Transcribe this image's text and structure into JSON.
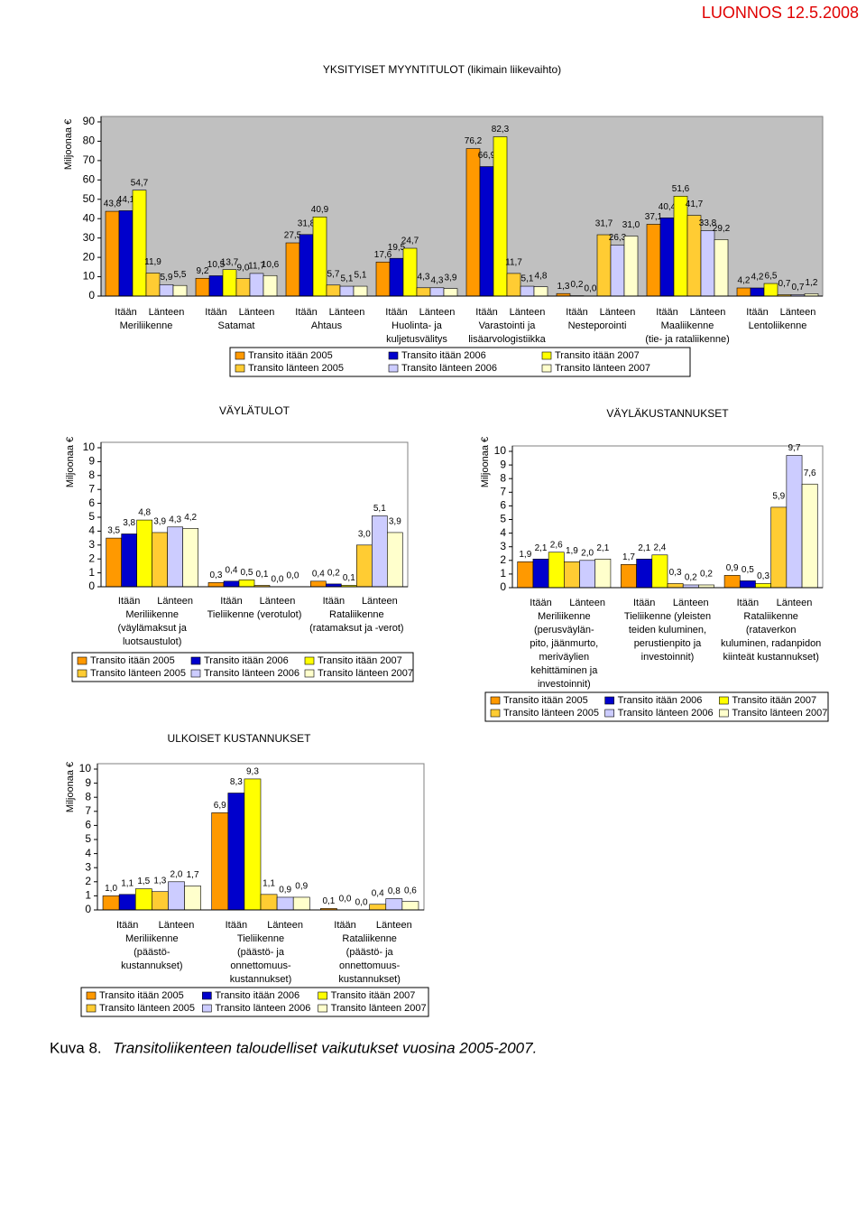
{
  "header": {
    "draft_label": "LUONNOS 12.5.2008"
  },
  "caption": {
    "label": "Kuva 8.",
    "text": "Transitoliikenteen taloudelliset vaikutukset vuosina 2005-2007."
  },
  "chart_data": [
    {
      "type": "bar",
      "title": "YKSITYISET MYYNTITULOT (likimain liikevaihto)",
      "y_label": "Miljoonaa €",
      "direction_labels": [
        "Itään",
        "Länteen"
      ],
      "categories": [
        [
          "Meriliikenne"
        ],
        [
          "Satamat"
        ],
        [
          "Ahtaus"
        ],
        [
          "Huolinta- ja",
          "kuljetusvälitys"
        ],
        [
          "Varastointi ja",
          "lisäarvologistiikka"
        ],
        [
          "Nesteporointi"
        ],
        [
          "Maaliikenne",
          "(tie- ja rataliikenne)"
        ],
        [
          "Lentoliikenne"
        ]
      ],
      "ylim": [
        0,
        90
      ],
      "yticks": [
        0,
        10,
        20,
        30,
        40,
        50,
        60,
        70,
        80,
        90
      ],
      "plot_background": "#C0C0C0",
      "series": [
        {
          "name": "Transito itään 2005",
          "color": "#FF9900",
          "values": [
            43.8,
            9.2,
            27.5,
            17.6,
            76.2,
            1.3,
            37.1,
            4.2
          ],
          "value_labels": [
            "43,8",
            "9,2",
            "27,5",
            "17,6",
            "76,2",
            "1,3",
            "37,1",
            "4,2"
          ]
        },
        {
          "name": "Transito itään 2006",
          "color": "#0000CC",
          "values": [
            44.1,
            10.5,
            31.8,
            19.5,
            66.9,
            0.2,
            40.4,
            4.2
          ],
          "value_labels": [
            "44,1",
            "10,5",
            "31,8",
            "19,5",
            "66,9",
            "0,2",
            "40,4",
            "4,2"
          ]
        },
        {
          "name": "Transito itään 2007",
          "color": "#FFFF00",
          "values": [
            54.7,
            13.7,
            40.9,
            24.7,
            82.3,
            0.0,
            51.6,
            6.5
          ],
          "value_labels": [
            "54,7",
            "13,7",
            "40,9",
            "24,7",
            "82,3",
            "0,0",
            "51,6",
            "6,5"
          ]
        },
        {
          "name": "Transito länteen 2005",
          "color": "#FFCC33",
          "values": [
            11.9,
            9.0,
            5.7,
            4.3,
            11.7,
            31.7,
            41.7,
            0.7
          ],
          "value_labels": [
            "11,9",
            "9,0",
            "5,7",
            "4,3",
            "11,7",
            "31,7",
            "41,7",
            "0,7"
          ]
        },
        {
          "name": "Transito länteen 2006",
          "color": "#CCCCFF",
          "values": [
            5.9,
            11.7,
            5.1,
            4.3,
            5.1,
            26.3,
            33.8,
            0.7
          ],
          "value_labels": [
            "5,9",
            "11,7",
            "5,1",
            "4,3",
            "5,1",
            "26,3",
            "33,8",
            "0,7"
          ]
        },
        {
          "name": "Transito länteen 2007",
          "color": "#FFFFCC",
          "values": [
            5.5,
            10.6,
            5.1,
            3.9,
            4.8,
            31.0,
            29.2,
            1.2
          ],
          "value_labels": [
            "5,5",
            "10,6",
            "5,1",
            "3,9",
            "4,8",
            "31,0",
            "29,2",
            "1,2"
          ]
        }
      ]
    },
    {
      "type": "bar",
      "title": "VÄYLÄTULOT",
      "y_label": "Miljoonaa €",
      "direction_labels": [
        "Itään",
        "Länteen"
      ],
      "categories": [
        [
          "Meriliikenne",
          "(väylämaksut ja",
          "luotsaustulot)"
        ],
        [
          "Tieliikenne (verotulot)"
        ],
        [
          "Rataliikenne",
          "(ratamaksut ja -verot)"
        ]
      ],
      "ylim": [
        0,
        10
      ],
      "yticks": [
        0,
        1,
        2,
        3,
        4,
        5,
        6,
        7,
        8,
        9,
        10
      ],
      "plot_background": "#FFFFFF",
      "series": [
        {
          "name": "Transito itään 2005",
          "color": "#FF9900",
          "values": [
            3.5,
            0.3,
            0.4
          ],
          "value_labels": [
            "3,5",
            "0,3",
            "0,4"
          ]
        },
        {
          "name": "Transito itään 2006",
          "color": "#0000CC",
          "values": [
            3.8,
            0.4,
            0.2
          ],
          "value_labels": [
            "3,8",
            "0,4",
            "0,2"
          ]
        },
        {
          "name": "Transito itään 2007",
          "color": "#FFFF00",
          "values": [
            4.8,
            0.5,
            0.1
          ],
          "value_labels": [
            "4,8",
            "0,5",
            "0,1"
          ]
        },
        {
          "name": "Transito länteen 2005",
          "color": "#FFCC33",
          "values": [
            3.9,
            0.1,
            3.0
          ],
          "value_labels": [
            "3,9",
            "0,1",
            "3,0"
          ]
        },
        {
          "name": "Transito länteen 2006",
          "color": "#CCCCFF",
          "values": [
            4.3,
            0.0,
            5.1
          ],
          "value_labels": [
            "4,3",
            "0,0",
            "5,1"
          ]
        },
        {
          "name": "Transito länteen 2007",
          "color": "#FFFFCC",
          "values": [
            4.2,
            0.0,
            3.9
          ],
          "value_labels": [
            "4,2",
            "0,0",
            "3,9"
          ]
        }
      ]
    },
    {
      "type": "bar",
      "title": "VÄYLÄKUSTANNUKSET",
      "y_label": "Miljoonaa €",
      "direction_labels": [
        "Itään",
        "Länteen"
      ],
      "categories": [
        [
          "Meriliikenne",
          "(perusväylän-",
          "pito, jäänmurto,",
          "meriväylien",
          "kehittäminen ja",
          "investoinnit)"
        ],
        [
          "Tieliikenne (yleisten",
          "teiden kuluminen,",
          "perustienpito ja",
          "investoinnit)"
        ],
        [
          "Rataliikenne",
          "(rataverkon",
          "kuluminen, radanpidon",
          "kiinteät kustannukset)"
        ]
      ],
      "ylim": [
        0,
        10
      ],
      "yticks": [
        0,
        1,
        2,
        3,
        4,
        5,
        6,
        7,
        8,
        9,
        10
      ],
      "plot_background": "#FFFFFF",
      "series": [
        {
          "name": "Transito itään 2005",
          "color": "#FF9900",
          "values": [
            1.9,
            1.7,
            0.9
          ],
          "value_labels": [
            "1,9",
            "1,7",
            "0,9"
          ]
        },
        {
          "name": "Transito itään 2006",
          "color": "#0000CC",
          "values": [
            2.1,
            2.1,
            0.5
          ],
          "value_labels": [
            "2,1",
            "2,1",
            "0,5"
          ]
        },
        {
          "name": "Transito itään 2007",
          "color": "#FFFF00",
          "values": [
            2.6,
            2.4,
            0.3
          ],
          "value_labels": [
            "2,6",
            "2,4",
            "0,3"
          ]
        },
        {
          "name": "Transito länteen 2005",
          "color": "#FFCC33",
          "values": [
            1.9,
            0.3,
            5.9
          ],
          "value_labels": [
            "1,9",
            "0,3",
            "5,9"
          ]
        },
        {
          "name": "Transito länteen 2006",
          "color": "#CCCCFF",
          "values": [
            2.0,
            0.2,
            9.7
          ],
          "value_labels": [
            "2,0",
            "0,2",
            "9,7"
          ]
        },
        {
          "name": "Transito länteen 2007",
          "color": "#FFFFCC",
          "values": [
            2.1,
            0.2,
            7.6
          ],
          "value_labels": [
            "2,1",
            "0,2",
            "7,6"
          ]
        }
      ]
    },
    {
      "type": "bar",
      "title": "ULKOISET KUSTANNUKSET",
      "y_label": "Miljoonaa €",
      "direction_labels": [
        "Itään",
        "Länteen"
      ],
      "categories": [
        [
          "Meriliikenne",
          "(päästö-",
          "kustannukset)"
        ],
        [
          "Tieliikenne",
          "(päästö- ja",
          "onnettomuus-",
          "kustannukset)"
        ],
        [
          "Rataliikenne",
          "(päästö- ja",
          "onnettomuus-",
          "kustannukset)"
        ]
      ],
      "ylim": [
        0,
        10
      ],
      "yticks": [
        0,
        1,
        2,
        3,
        4,
        5,
        6,
        7,
        8,
        9,
        10
      ],
      "plot_background": "#FFFFFF",
      "series": [
        {
          "name": "Transito itään 2005",
          "color": "#FF9900",
          "values": [
            1.0,
            6.9,
            0.1
          ],
          "value_labels": [
            "1,0",
            "6,9",
            "0,1"
          ]
        },
        {
          "name": "Transito itään 2006",
          "color": "#0000CC",
          "values": [
            1.1,
            8.3,
            0.0
          ],
          "value_labels": [
            "1,1",
            "8,3",
            "0,0"
          ]
        },
        {
          "name": "Transito itään 2007",
          "color": "#FFFF00",
          "values": [
            1.5,
            9.3,
            0.0
          ],
          "value_labels": [
            "1,5",
            "9,3",
            "0,0"
          ]
        },
        {
          "name": "Transito länteen 2005",
          "color": "#FFCC33",
          "values": [
            1.3,
            1.1,
            0.4
          ],
          "value_labels": [
            "1,3",
            "1,1",
            "0,4"
          ]
        },
        {
          "name": "Transito länteen 2006",
          "color": "#CCCCFF",
          "values": [
            2.0,
            0.9,
            0.8
          ],
          "value_labels": [
            "2,0",
            "0,9",
            "0,8"
          ]
        },
        {
          "name": "Transito länteen 2007",
          "color": "#FFFFCC",
          "values": [
            1.7,
            0.9,
            0.6
          ],
          "value_labels": [
            "1,7",
            "0,9",
            "0,6"
          ]
        }
      ]
    }
  ]
}
